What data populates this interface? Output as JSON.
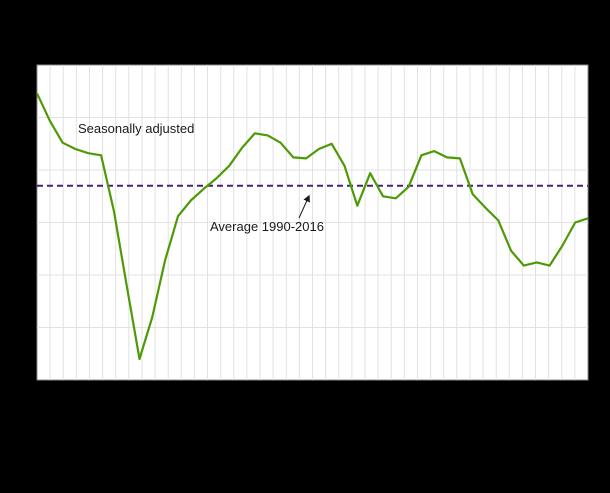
{
  "chart_data": {
    "type": "line",
    "title": "",
    "series": [
      {
        "name": "Seasonally adjusted",
        "color": "#4e9a06",
        "values": [
          8.8,
          6.2,
          4.1,
          3.5,
          3.1,
          2.9,
          -2.4,
          -9.5,
          -16.5,
          -12.5,
          -7.1,
          -2.9,
          -1.4,
          -0.3,
          0.7,
          1.9,
          3.6,
          5.0,
          4.8,
          4.1,
          2.7,
          2.6,
          3.5,
          4.0,
          1.9,
          -1.9,
          1.2,
          -1.0,
          -1.2,
          -0.1,
          2.9,
          3.3,
          2.7,
          2.6,
          -0.8,
          -2.1,
          -3.3,
          -6.2,
          -7.6,
          -7.3,
          -7.6,
          -5.7,
          -3.5,
          -3.1
        ]
      }
    ],
    "reference_line": {
      "label": "Average 1990-2016",
      "value": 0,
      "color": "#4b1e78",
      "style": "dashed"
    },
    "annotations": [
      {
        "text": "Seasonally adjusted"
      },
      {
        "text": "Average 1990-2016"
      }
    ],
    "ylim": [
      -18.5,
      11.5
    ],
    "grid": true,
    "legend_position": "none",
    "colors": {
      "page_background": "#000000",
      "plot_background": "#ffffff",
      "gridline": "#e2e2e2"
    }
  }
}
